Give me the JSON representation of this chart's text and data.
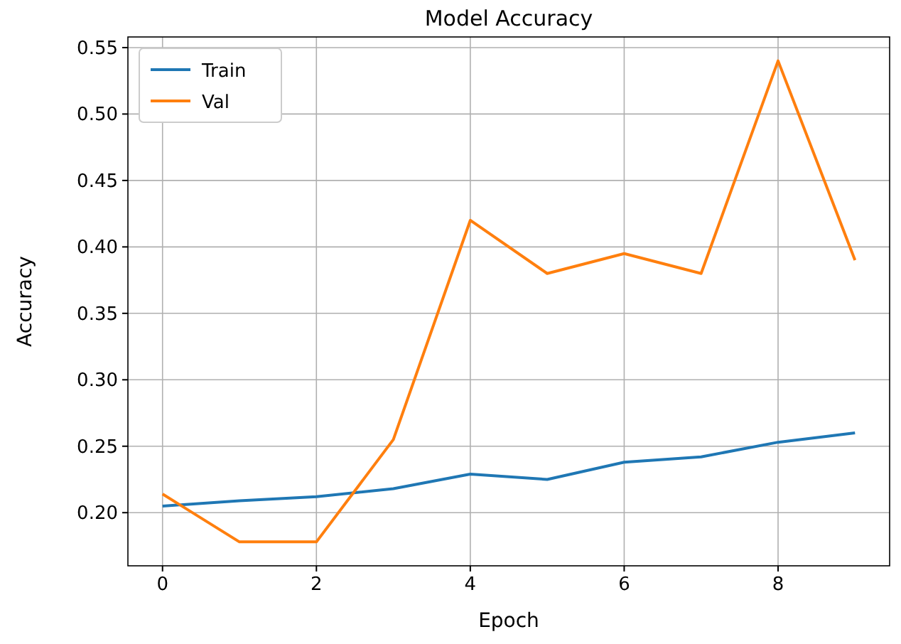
{
  "chart_data": {
    "type": "line",
    "title": "Model Accuracy",
    "xlabel": "Epoch",
    "ylabel": "Accuracy",
    "x": [
      0,
      1,
      2,
      3,
      4,
      5,
      6,
      7,
      8,
      9
    ],
    "series": [
      {
        "name": "Train",
        "color": "#1f77b4",
        "values": [
          0.205,
          0.209,
          0.212,
          0.218,
          0.229,
          0.225,
          0.238,
          0.242,
          0.253,
          0.26
        ]
      },
      {
        "name": "Val",
        "color": "#ff7f0e",
        "values": [
          0.214,
          0.178,
          0.178,
          0.255,
          0.42,
          0.38,
          0.395,
          0.38,
          0.54,
          0.39
        ]
      }
    ],
    "xlim": [
      -0.45,
      9.45
    ],
    "xticks": [
      0,
      2,
      4,
      6,
      8
    ],
    "ylim": [
      0.16,
      0.558
    ],
    "yticks": [
      {
        "value": 0.2,
        "label": "0.20"
      },
      {
        "value": 0.25,
        "label": "0.25"
      },
      {
        "value": 0.3,
        "label": "0.30"
      },
      {
        "value": 0.35,
        "label": "0.35"
      },
      {
        "value": 0.4,
        "label": "0.40"
      },
      {
        "value": 0.45,
        "label": "0.45"
      },
      {
        "value": 0.5,
        "label": "0.50"
      },
      {
        "value": 0.55,
        "label": "0.55"
      }
    ],
    "grid": true,
    "legend": "top left"
  }
}
